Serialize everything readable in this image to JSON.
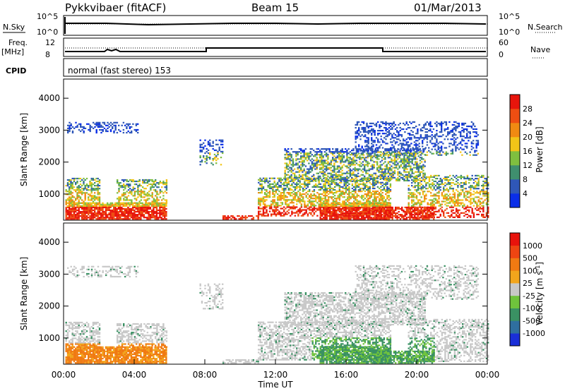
{
  "header": {
    "radar": "Pykkvibaer (fitACF)",
    "beam": "Beam 15",
    "date": "01/Mar/2013"
  },
  "top_panel": {
    "nsky_label": "N.Sky",
    "nsky_ticks": [
      "10^5",
      "10^0"
    ],
    "nsearch_label": "N.Search",
    "nsearch_ticks": [
      "10^5",
      "10^0"
    ],
    "freq_label": "Freq.",
    "freq_unit": "[MHz]",
    "freq_ticks": [
      "12",
      "8"
    ],
    "nave_label": "Nave",
    "nave_ticks": [
      "60",
      "0"
    ],
    "cpid_label": "CPID",
    "cpid_text": "normal (fast stereo) 153"
  },
  "chart_data": [
    {
      "type": "heatmap",
      "ylabel": "Slant Range [km]",
      "yticks": [
        1000,
        2000,
        3000,
        4000
      ],
      "ylim": [
        180,
        4600
      ],
      "xlim": [
        0,
        24
      ],
      "colorbar": {
        "label": "Power [dB]",
        "ticks": [
          "4",
          "8",
          "12",
          "16",
          "20",
          "24",
          "28"
        ],
        "colors": [
          "#0a2ee8",
          "#2f57b8",
          "#3f8f6e",
          "#7fbf3f",
          "#f2c418",
          "#f08a12",
          "#ee4e12",
          "#e8150c"
        ]
      }
    },
    {
      "type": "heatmap",
      "ylabel": "Slant Range [km]",
      "yticks": [
        1000,
        2000,
        3000,
        4000
      ],
      "ylim": [
        180,
        4600
      ],
      "xlim": [
        0,
        24
      ],
      "xlabel": "Time UT",
      "xticks": [
        "00:00",
        "04:00",
        "08:00",
        "12:00",
        "16:00",
        "20:00",
        "00:00"
      ],
      "colorbar": {
        "label": "Velocity [m s^-1]",
        "ticks": [
          "1000",
          "500",
          "100",
          "25",
          "-25",
          "-100",
          "-500",
          "-1000"
        ],
        "colors": [
          "#1a2fd8",
          "#2f6f9f",
          "#3a9163",
          "#6fc33c",
          "#c8c8c8",
          "#f2a51c",
          "#f07a12",
          "#ee4512",
          "#e8130c"
        ]
      }
    }
  ]
}
